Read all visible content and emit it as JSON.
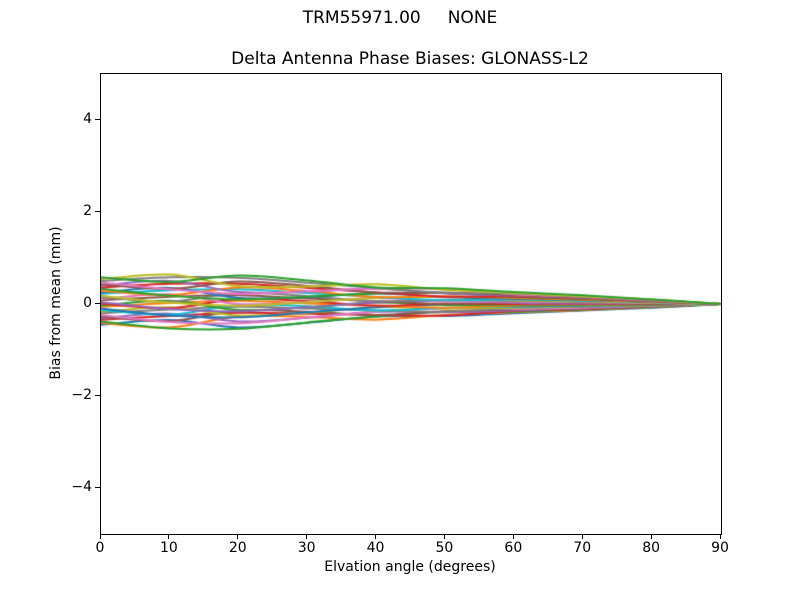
{
  "figure": {
    "suptitle": "TRM55971.00     NONE",
    "axes_title": "Delta Antenna Phase Biases: GLONASS-L2",
    "xlabel": "Elvation angle (degrees)",
    "ylabel": "Bias from mean (mm)"
  },
  "colors": {
    "background": "#ffffff",
    "axis": "#000000",
    "text": "#000000"
  },
  "chart_data": {
    "type": "line",
    "suptitle": "TRM55971.00     NONE",
    "title": "Delta Antenna Phase Biases: GLONASS-L2",
    "xlabel": "Elvation angle (degrees)",
    "ylabel": "Bias from mean (mm)",
    "xlim": [
      0,
      90
    ],
    "ylim": [
      -5,
      5
    ],
    "grid": false,
    "legend_position": "none",
    "x_ticks": [
      0,
      10,
      20,
      30,
      40,
      50,
      60,
      70,
      80,
      90
    ],
    "x_tick_labels": [
      "0",
      "10",
      "20",
      "30",
      "40",
      "50",
      "60",
      "70",
      "80",
      "90"
    ],
    "y_ticks": [
      4,
      2,
      0,
      -2,
      -4
    ],
    "y_tick_labels": [
      "4",
      "2",
      "0",
      "−2",
      "−4"
    ],
    "line_width": 2,
    "x": [
      0,
      10,
      20,
      30,
      40,
      50,
      60,
      70,
      80,
      90
    ],
    "series": [
      {
        "color": "#1f77b4",
        "values": [
          -0.45,
          -0.35,
          -0.51,
          -0.41,
          -0.27,
          -0.26,
          -0.2,
          -0.14,
          -0.08,
          0
        ]
      },
      {
        "color": "#ff7f0e",
        "values": [
          -0.41,
          -0.51,
          -0.27,
          -0.28,
          -0.34,
          -0.24,
          -0.18,
          -0.13,
          -0.07,
          0
        ]
      },
      {
        "color": "#2ca02c",
        "values": [
          -0.38,
          -0.53,
          -0.54,
          -0.4,
          -0.27,
          -0.17,
          -0.17,
          -0.12,
          -0.07,
          0
        ]
      },
      {
        "color": "#d62728",
        "values": [
          -0.34,
          -0.26,
          -0.19,
          -0.21,
          -0.24,
          -0.25,
          -0.15,
          -0.11,
          -0.06,
          0
        ]
      },
      {
        "color": "#9467bd",
        "values": [
          -0.31,
          -0.21,
          -0.38,
          -0.3,
          -0.17,
          -0.18,
          -0.14,
          -0.1,
          -0.06,
          0
        ]
      },
      {
        "color": "#8c564b",
        "values": [
          -0.27,
          -0.37,
          -0.14,
          -0.17,
          -0.24,
          -0.16,
          -0.12,
          -0.09,
          -0.05,
          0
        ]
      },
      {
        "color": "#e377c2",
        "values": [
          -0.24,
          -0.39,
          -0.42,
          -0.29,
          -0.17,
          -0.09,
          -0.11,
          -0.08,
          -0.04,
          0
        ]
      },
      {
        "color": "#7f7f7f",
        "values": [
          -0.2,
          -0.12,
          -0.06,
          -0.1,
          -0.14,
          -0.17,
          -0.09,
          -0.06,
          -0.04,
          0
        ]
      },
      {
        "color": "#bcbd22",
        "values": [
          -0.17,
          -0.07,
          -0.25,
          -0.19,
          -0.07,
          -0.1,
          -0.08,
          -0.05,
          -0.03,
          0
        ]
      },
      {
        "color": "#17becf",
        "values": [
          -0.13,
          -0.23,
          -0.02,
          -0.05,
          -0.14,
          -0.08,
          -0.06,
          -0.04,
          -0.02,
          0
        ]
      },
      {
        "color": "#1f77b4",
        "values": [
          -0.1,
          -0.25,
          -0.29,
          -0.18,
          -0.07,
          -0.01,
          -0.05,
          -0.03,
          -0.02,
          0
        ]
      },
      {
        "color": "#ff7f0e",
        "values": [
          -0.06,
          0.02,
          0.07,
          0.01,
          -0.04,
          -0.08,
          -0.03,
          -0.02,
          -0.01,
          0
        ]
      },
      {
        "color": "#2ca02c",
        "values": [
          -0.03,
          0.07,
          -0.13,
          -0.07,
          0.03,
          -0.02,
          -0.01,
          -0.01,
          -0.01,
          0
        ]
      },
      {
        "color": "#d62728",
        "values": [
          0.01,
          -0.09,
          0.11,
          0.06,
          -0.04,
          0.01,
          0.0,
          0.0,
          0.0,
          0
        ]
      },
      {
        "color": "#9467bd",
        "values": [
          0.04,
          -0.11,
          -0.16,
          -0.07,
          0.03,
          0.07,
          0.02,
          0.01,
          0.01,
          0
        ]
      },
      {
        "color": "#8c564b",
        "values": [
          0.08,
          0.16,
          0.19,
          0.12,
          0.06,
          0.0,
          0.04,
          0.03,
          0.01,
          0
        ]
      },
      {
        "color": "#e377c2",
        "values": [
          0.11,
          0.21,
          0.0,
          0.04,
          0.13,
          0.06,
          0.05,
          0.04,
          0.02,
          0
        ]
      },
      {
        "color": "#7f7f7f",
        "values": [
          0.15,
          0.05,
          0.24,
          0.17,
          0.06,
          0.09,
          0.07,
          0.05,
          0.03,
          0
        ]
      },
      {
        "color": "#bcbd22",
        "values": [
          0.18,
          0.03,
          -0.04,
          0.04,
          0.13,
          0.15,
          0.08,
          0.06,
          0.03,
          0
        ]
      },
      {
        "color": "#17becf",
        "values": [
          0.22,
          0.3,
          0.32,
          0.24,
          0.15,
          0.08,
          0.1,
          0.07,
          0.04,
          0
        ]
      },
      {
        "color": "#1f77b4",
        "values": [
          0.25,
          0.35,
          0.13,
          0.15,
          0.23,
          0.15,
          0.11,
          0.08,
          0.05,
          0
        ]
      },
      {
        "color": "#ff7f0e",
        "values": [
          0.29,
          0.19,
          0.36,
          0.28,
          0.15,
          0.17,
          0.13,
          0.09,
          0.05,
          0
        ]
      },
      {
        "color": "#2ca02c",
        "values": [
          0.33,
          0.18,
          0.1,
          0.16,
          0.23,
          0.24,
          0.15,
          0.11,
          0.06,
          0
        ]
      },
      {
        "color": "#d62728",
        "values": [
          0.36,
          0.44,
          0.44,
          0.35,
          0.25,
          0.16,
          0.16,
          0.12,
          0.06,
          0
        ]
      },
      {
        "color": "#9467bd",
        "values": [
          0.4,
          0.5,
          0.26,
          0.27,
          0.33,
          0.23,
          0.18,
          0.13,
          0.07,
          0
        ]
      },
      {
        "color": "#8c564b",
        "values": [
          0.43,
          0.33,
          0.49,
          0.39,
          0.25,
          0.25,
          0.19,
          0.14,
          0.08,
          0
        ]
      },
      {
        "color": "#e377c2",
        "values": [
          0.47,
          0.32,
          0.22,
          0.28,
          0.33,
          0.32,
          0.21,
          0.15,
          0.08,
          0
        ]
      },
      {
        "color": "#7f7f7f",
        "values": [
          0.5,
          0.58,
          0.57,
          0.46,
          0.35,
          0.24,
          0.23,
          0.16,
          0.09,
          0
        ]
      },
      {
        "color": "#bcbd22",
        "values": [
          0.54,
          0.64,
          0.39,
          0.38,
          0.43,
          0.31,
          0.24,
          0.17,
          0.1,
          0
        ]
      },
      {
        "color": "#2ca02c",
        "values": [
          0.58,
          0.48,
          0.62,
          0.51,
          0.36,
          0.34,
          0.26,
          0.19,
          0.1,
          0
        ]
      }
    ]
  }
}
